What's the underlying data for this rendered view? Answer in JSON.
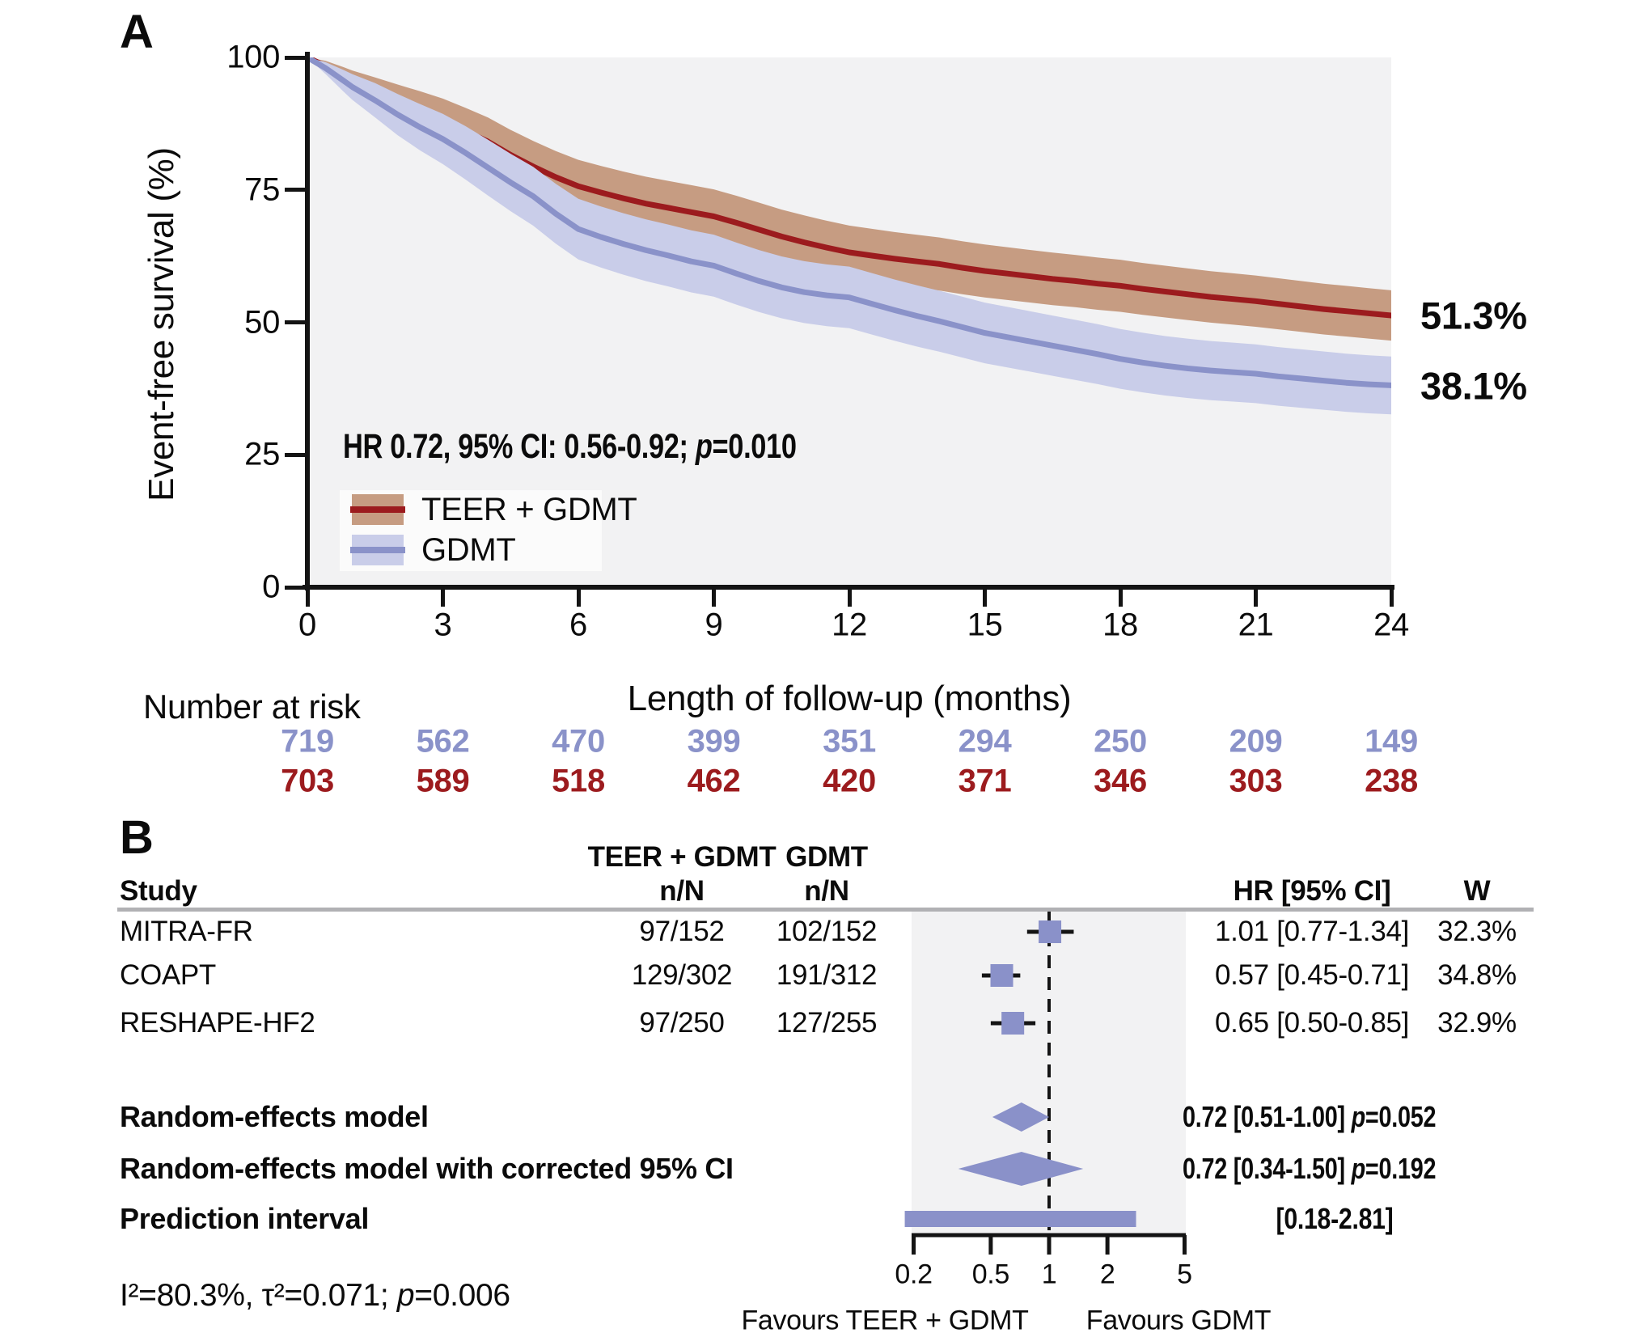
{
  "colors": {
    "teer_line": "#9c1b1e",
    "teer_band": "#c69c82",
    "gdmt_line": "#8a92c9",
    "gdmt_band": "#c9cde9",
    "marker_blue": "#8a91c9",
    "plot_bg": "#f2f2f3",
    "rule_gray": "#b1b1b4",
    "axis_black": "#141414"
  },
  "panel_a": {
    "label": "A",
    "y_axis_label": "Event-free survival (%)",
    "x_axis_label": "Length of follow-up (months)",
    "y_ticks": [
      100,
      75,
      50,
      25,
      0
    ],
    "x_ticks": [
      0,
      3,
      6,
      9,
      12,
      15,
      18,
      21,
      24
    ],
    "hr_annotation": {
      "prefix": "HR 0.72, 95% CI: 0.56-0.92; ",
      "p_italic": "p",
      "suffix": "=0.010"
    },
    "end_labels": {
      "teer": "51.3%",
      "gdmt": "38.1%"
    },
    "legend": [
      {
        "series": "teer",
        "label": "TEER + GDMT"
      },
      {
        "series": "gdmt",
        "label": "GDMT"
      }
    ],
    "number_at_risk": {
      "title": "Number at risk",
      "rows": [
        {
          "series": "gdmt",
          "values": [
            "719",
            "562",
            "470",
            "399",
            "351",
            "294",
            "250",
            "209",
            "149"
          ]
        },
        {
          "series": "teer",
          "values": [
            "703",
            "589",
            "518",
            "462",
            "420",
            "371",
            "346",
            "303",
            "238"
          ]
        }
      ]
    }
  },
  "panel_b": {
    "label": "B",
    "headers": {
      "study": "Study",
      "col1_top": "TEER + GDMT",
      "col2_top": "GDMT",
      "nn1": "n/N",
      "nn2": "n/N",
      "hr": "HR [95% CI]",
      "w": "W"
    },
    "studies": [
      {
        "name": "MITRA-FR",
        "teer_nn": "97/152",
        "gdmt_nn": "102/152",
        "hr_text": "1.01 [0.77-1.34]",
        "w": "32.3%"
      },
      {
        "name": "COAPT",
        "teer_nn": "129/302",
        "gdmt_nn": "191/312",
        "hr_text": "0.57 [0.45-0.71]",
        "w": "34.8%"
      },
      {
        "name": "RESHAPE-HF2",
        "teer_nn": "97/250",
        "gdmt_nn": "127/255",
        "hr_text": "0.65 [0.50-0.85]",
        "w": "32.9%"
      }
    ],
    "summary_rows": [
      {
        "name": "Random-effects model",
        "hr_text": "0.72 [0.51-1.00] ",
        "p_italic": "p",
        "p_suffix": "=0.052"
      },
      {
        "name": "Random-effects model with corrected 95% CI",
        "hr_text": "0.72 [0.34-1.50] ",
        "p_italic": "p",
        "p_suffix": "=0.192"
      },
      {
        "name": "Prediction interval",
        "hr_text": "[0.18-2.81]",
        "p_italic": "",
        "p_suffix": ""
      }
    ],
    "heterogeneity": {
      "prefix": "I²=80.3%, τ²=0.071; ",
      "p_italic": "p",
      "suffix": "=0.006"
    },
    "axis_ticks": [
      "0.2",
      "0.5",
      "1",
      "2",
      "5"
    ],
    "favours_left": "Favours TEER + GDMT",
    "favours_right": "Favours GDMT"
  },
  "chart_data": [
    {
      "type": "line",
      "title": "Kaplan-Meier event-free survival with 95% CI bands",
      "xlabel": "Length of follow-up (months)",
      "ylabel": "Event-free survival (%)",
      "xlim": [
        0,
        24
      ],
      "ylim": [
        0,
        100
      ],
      "x_ticks": [
        0,
        3,
        6,
        9,
        12,
        15,
        18,
        21,
        24
      ],
      "y_ticks": [
        0,
        25,
        50,
        75,
        100
      ],
      "annotation": "HR 0.72, 95% CI: 0.56-0.92; p=0.010",
      "legend_position": "lower-left",
      "series": [
        {
          "name": "TEER + GDMT",
          "color_key": "teer_line",
          "band_color_key": "teer_band",
          "final_label": "51.3%",
          "band_halfwidth_max": 5.4,
          "points": [
            [
              0,
              100
            ],
            [
              0.4,
              98.4
            ],
            [
              0.8,
              96.4
            ],
            [
              1,
              95.4
            ],
            [
              1.5,
              93.4
            ],
            [
              2,
              91.5
            ],
            [
              2.5,
              89.8
            ],
            [
              3,
              88.1
            ],
            [
              3.5,
              86.1
            ],
            [
              4,
              84.1
            ],
            [
              4.5,
              81.6
            ],
            [
              5,
              79.4
            ],
            [
              5.5,
              77.4
            ],
            [
              6,
              75.7
            ],
            [
              6.5,
              74.5
            ],
            [
              7,
              73.4
            ],
            [
              7.5,
              72.4
            ],
            [
              8,
              71.6
            ],
            [
              8.5,
              70.8
            ],
            [
              9,
              70.0
            ],
            [
              9.5,
              68.8
            ],
            [
              10,
              67.5
            ],
            [
              10.5,
              66.2
            ],
            [
              11,
              65.1
            ],
            [
              11.5,
              64.1
            ],
            [
              12,
              63.2
            ],
            [
              12.5,
              62.6
            ],
            [
              13,
              62.0
            ],
            [
              13.5,
              61.5
            ],
            [
              14,
              61.0
            ],
            [
              14.5,
              60.3
            ],
            [
              15,
              59.7
            ],
            [
              15.5,
              59.2
            ],
            [
              16,
              58.7
            ],
            [
              16.5,
              58.2
            ],
            [
              17,
              57.8
            ],
            [
              17.5,
              57.3
            ],
            [
              18,
              56.9
            ],
            [
              18.5,
              56.3
            ],
            [
              19,
              55.8
            ],
            [
              19.5,
              55.3
            ],
            [
              20,
              54.8
            ],
            [
              20.5,
              54.4
            ],
            [
              21,
              54.0
            ],
            [
              21.5,
              53.5
            ],
            [
              22,
              53.0
            ],
            [
              22.5,
              52.5
            ],
            [
              23,
              52.1
            ],
            [
              23.5,
              51.7
            ],
            [
              24,
              51.3
            ]
          ]
        },
        {
          "name": "GDMT",
          "color_key": "gdmt_line",
          "band_color_key": "gdmt_band",
          "final_label": "38.1%",
          "band_halfwidth_max": 6.2,
          "points": [
            [
              0,
              100
            ],
            [
              0.4,
              98.0
            ],
            [
              0.8,
              95.6
            ],
            [
              1,
              94.4
            ],
            [
              1.5,
              91.9
            ],
            [
              2,
              89.2
            ],
            [
              2.5,
              86.8
            ],
            [
              3,
              84.6
            ],
            [
              3.5,
              82.0
            ],
            [
              4,
              79.2
            ],
            [
              4.5,
              76.4
            ],
            [
              5,
              73.8
            ],
            [
              5.5,
              70.5
            ],
            [
              6,
              67.6
            ],
            [
              6.5,
              66.1
            ],
            [
              7,
              64.8
            ],
            [
              7.5,
              63.6
            ],
            [
              8,
              62.6
            ],
            [
              8.5,
              61.5
            ],
            [
              9,
              60.7
            ],
            [
              9.5,
              59.2
            ],
            [
              10,
              57.8
            ],
            [
              10.5,
              56.6
            ],
            [
              11,
              55.7
            ],
            [
              11.5,
              55.1
            ],
            [
              12,
              54.7
            ],
            [
              12.5,
              53.5
            ],
            [
              13,
              52.3
            ],
            [
              13.5,
              51.2
            ],
            [
              14,
              50.2
            ],
            [
              14.5,
              49.1
            ],
            [
              15,
              48.0
            ],
            [
              15.5,
              47.2
            ],
            [
              16,
              46.4
            ],
            [
              16.5,
              45.6
            ],
            [
              17,
              44.8
            ],
            [
              17.5,
              44.0
            ],
            [
              18,
              43.1
            ],
            [
              18.5,
              42.4
            ],
            [
              19,
              41.8
            ],
            [
              19.5,
              41.3
            ],
            [
              20,
              40.9
            ],
            [
              20.5,
              40.6
            ],
            [
              21,
              40.3
            ],
            [
              21.5,
              39.8
            ],
            [
              22,
              39.4
            ],
            [
              22.5,
              39.0
            ],
            [
              23,
              38.6
            ],
            [
              23.5,
              38.3
            ],
            [
              24,
              38.1
            ]
          ]
        }
      ],
      "number_at_risk": {
        "GDMT": [
          719,
          562,
          470,
          399,
          351,
          294,
          250,
          209,
          149
        ],
        "TEER + GDMT": [
          703,
          589,
          518,
          462,
          420,
          371,
          346,
          303,
          238
        ]
      }
    },
    {
      "type": "forest",
      "scale": "log",
      "x_ticks": [
        0.2,
        0.5,
        1,
        2,
        5
      ],
      "null_line": 1,
      "rows": [
        {
          "name": "MITRA-FR",
          "hr": 1.01,
          "lo": 0.77,
          "hi": 1.34,
          "weight": 32.3
        },
        {
          "name": "COAPT",
          "hr": 0.57,
          "lo": 0.45,
          "hi": 0.71,
          "weight": 34.8
        },
        {
          "name": "RESHAPE-HF2",
          "hr": 0.65,
          "lo": 0.5,
          "hi": 0.85,
          "weight": 32.9
        }
      ],
      "diamonds": [
        {
          "name": "Random-effects model",
          "hr": 0.72,
          "lo": 0.51,
          "hi": 1.0,
          "p": 0.052
        },
        {
          "name": "Random-effects model with corrected 95% CI",
          "hr": 0.72,
          "lo": 0.34,
          "hi": 1.5,
          "p": 0.192
        }
      ],
      "prediction_interval": {
        "lo": 0.18,
        "hi": 2.81
      },
      "heterogeneity": {
        "I2": "80.3%",
        "tau2": 0.071,
        "p": 0.006
      }
    }
  ]
}
